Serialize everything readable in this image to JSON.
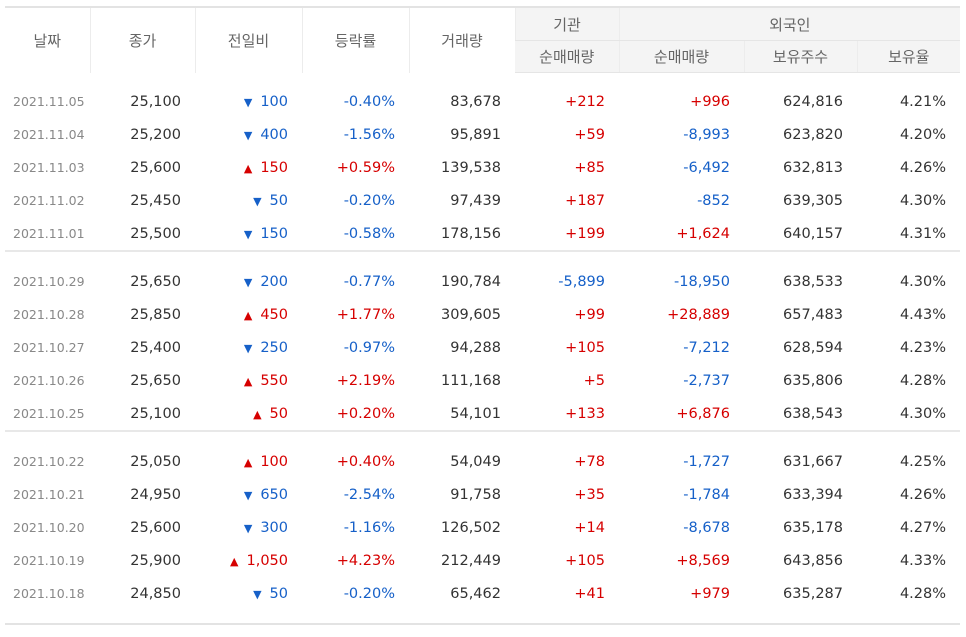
{
  "headers": {
    "date": "날짜",
    "close": "종가",
    "change": "전일비",
    "rate": "등락률",
    "volume": "거래량",
    "inst_group": "기관",
    "inst_net": "순매매량",
    "foreign_group": "외국인",
    "foreign_net": "순매매량",
    "foreign_hold": "보유주수",
    "foreign_ratio": "보유율"
  },
  "colors": {
    "up": "#d60000",
    "down": "#1660c8",
    "header_shade": "#f4f4f4"
  },
  "icons": {
    "up": "up-triangle-icon",
    "down": "down-triangle-icon"
  },
  "groups": [
    [
      {
        "date": "2021.11.05",
        "close": "25,100",
        "dir": "down",
        "change": "100",
        "rate": "-0.40%",
        "rate_dir": "down",
        "volume": "83,678",
        "inst": "+212",
        "inst_dir": "up",
        "foreign": "+996",
        "foreign_dir": "up",
        "hold": "624,816",
        "ratio": "4.21%"
      },
      {
        "date": "2021.11.04",
        "close": "25,200",
        "dir": "down",
        "change": "400",
        "rate": "-1.56%",
        "rate_dir": "down",
        "volume": "95,891",
        "inst": "+59",
        "inst_dir": "up",
        "foreign": "-8,993",
        "foreign_dir": "down",
        "hold": "623,820",
        "ratio": "4.20%"
      },
      {
        "date": "2021.11.03",
        "close": "25,600",
        "dir": "up",
        "change": "150",
        "rate": "+0.59%",
        "rate_dir": "up",
        "volume": "139,538",
        "inst": "+85",
        "inst_dir": "up",
        "foreign": "-6,492",
        "foreign_dir": "down",
        "hold": "632,813",
        "ratio": "4.26%"
      },
      {
        "date": "2021.11.02",
        "close": "25,450",
        "dir": "down",
        "change": "50",
        "rate": "-0.20%",
        "rate_dir": "down",
        "volume": "97,439",
        "inst": "+187",
        "inst_dir": "up",
        "foreign": "-852",
        "foreign_dir": "down",
        "hold": "639,305",
        "ratio": "4.30%"
      },
      {
        "date": "2021.11.01",
        "close": "25,500",
        "dir": "down",
        "change": "150",
        "rate": "-0.58%",
        "rate_dir": "down",
        "volume": "178,156",
        "inst": "+199",
        "inst_dir": "up",
        "foreign": "+1,624",
        "foreign_dir": "up",
        "hold": "640,157",
        "ratio": "4.31%"
      }
    ],
    [
      {
        "date": "2021.10.29",
        "close": "25,650",
        "dir": "down",
        "change": "200",
        "rate": "-0.77%",
        "rate_dir": "down",
        "volume": "190,784",
        "inst": "-5,899",
        "inst_dir": "down",
        "foreign": "-18,950",
        "foreign_dir": "down",
        "hold": "638,533",
        "ratio": "4.30%"
      },
      {
        "date": "2021.10.28",
        "close": "25,850",
        "dir": "up",
        "change": "450",
        "rate": "+1.77%",
        "rate_dir": "up",
        "volume": "309,605",
        "inst": "+99",
        "inst_dir": "up",
        "foreign": "+28,889",
        "foreign_dir": "up",
        "hold": "657,483",
        "ratio": "4.43%"
      },
      {
        "date": "2021.10.27",
        "close": "25,400",
        "dir": "down",
        "change": "250",
        "rate": "-0.97%",
        "rate_dir": "down",
        "volume": "94,288",
        "inst": "+105",
        "inst_dir": "up",
        "foreign": "-7,212",
        "foreign_dir": "down",
        "hold": "628,594",
        "ratio": "4.23%"
      },
      {
        "date": "2021.10.26",
        "close": "25,650",
        "dir": "up",
        "change": "550",
        "rate": "+2.19%",
        "rate_dir": "up",
        "volume": "111,168",
        "inst": "+5",
        "inst_dir": "up",
        "foreign": "-2,737",
        "foreign_dir": "down",
        "hold": "635,806",
        "ratio": "4.28%"
      },
      {
        "date": "2021.10.25",
        "close": "25,100",
        "dir": "up",
        "change": "50",
        "rate": "+0.20%",
        "rate_dir": "up",
        "volume": "54,101",
        "inst": "+133",
        "inst_dir": "up",
        "foreign": "+6,876",
        "foreign_dir": "up",
        "hold": "638,543",
        "ratio": "4.30%"
      }
    ],
    [
      {
        "date": "2021.10.22",
        "close": "25,050",
        "dir": "up",
        "change": "100",
        "rate": "+0.40%",
        "rate_dir": "up",
        "volume": "54,049",
        "inst": "+78",
        "inst_dir": "up",
        "foreign": "-1,727",
        "foreign_dir": "down",
        "hold": "631,667",
        "ratio": "4.25%"
      },
      {
        "date": "2021.10.21",
        "close": "24,950",
        "dir": "down",
        "change": "650",
        "rate": "-2.54%",
        "rate_dir": "down",
        "volume": "91,758",
        "inst": "+35",
        "inst_dir": "up",
        "foreign": "-1,784",
        "foreign_dir": "down",
        "hold": "633,394",
        "ratio": "4.26%"
      },
      {
        "date": "2021.10.20",
        "close": "25,600",
        "dir": "down",
        "change": "300",
        "rate": "-1.16%",
        "rate_dir": "down",
        "volume": "126,502",
        "inst": "+14",
        "inst_dir": "up",
        "foreign": "-8,678",
        "foreign_dir": "down",
        "hold": "635,178",
        "ratio": "4.27%"
      },
      {
        "date": "2021.10.19",
        "close": "25,900",
        "dir": "up",
        "change": "1,050",
        "rate": "+4.23%",
        "rate_dir": "up",
        "volume": "212,449",
        "inst": "+105",
        "inst_dir": "up",
        "foreign": "+8,569",
        "foreign_dir": "up",
        "hold": "643,856",
        "ratio": "4.33%"
      },
      {
        "date": "2021.10.18",
        "close": "24,850",
        "dir": "down",
        "change": "50",
        "rate": "-0.20%",
        "rate_dir": "down",
        "volume": "65,462",
        "inst": "+41",
        "inst_dir": "up",
        "foreign": "+979",
        "foreign_dir": "up",
        "hold": "635,287",
        "ratio": "4.28%"
      }
    ]
  ]
}
